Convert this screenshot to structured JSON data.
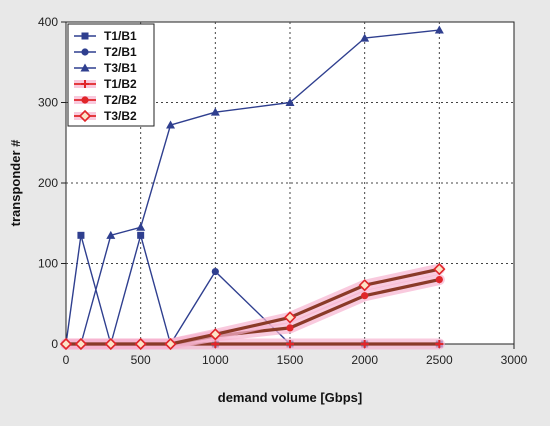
{
  "chart_data": {
    "type": "line",
    "title": "",
    "xlabel": "demand volume [Gbps]",
    "ylabel": "transponder #",
    "xlim": [
      0,
      3000
    ],
    "ylim": [
      0,
      400
    ],
    "xticks": [
      0,
      500,
      1000,
      1500,
      2000,
      2500,
      3000
    ],
    "yticks": [
      0,
      100,
      200,
      300,
      400
    ],
    "grid": true,
    "legend_position": "top-left",
    "series": [
      {
        "name": "T1/B1",
        "color": "#2f3f8f",
        "marker": "square",
        "glow": false,
        "x": [
          0,
          100,
          300,
          500,
          700,
          1000,
          1500,
          2000,
          2500
        ],
        "y": [
          0,
          135,
          0,
          135,
          0,
          0,
          0,
          0,
          0
        ]
      },
      {
        "name": "T2/B1",
        "color": "#2f3f8f",
        "marker": "circle",
        "glow": false,
        "x": [
          0,
          100,
          300,
          500,
          700,
          1000,
          1500,
          2000,
          2500
        ],
        "y": [
          0,
          0,
          0,
          0,
          0,
          90,
          0,
          0,
          0
        ]
      },
      {
        "name": "T3/B1",
        "color": "#2f3f8f",
        "marker": "triangle",
        "glow": false,
        "x": [
          0,
          100,
          300,
          500,
          700,
          1000,
          1500,
          2000,
          2500
        ],
        "y": [
          0,
          0,
          135,
          145,
          272,
          288,
          300,
          380,
          390
        ]
      },
      {
        "name": "T1/B2",
        "color": "#e0252a",
        "marker": "plus",
        "glow": true,
        "x": [
          0,
          100,
          300,
          500,
          700,
          1000,
          1500,
          2000,
          2500
        ],
        "y": [
          0,
          0,
          0,
          0,
          0,
          0,
          0,
          0,
          0
        ]
      },
      {
        "name": "T2/B2",
        "color": "#e0252a",
        "marker": "circle",
        "glow": true,
        "x": [
          0,
          100,
          300,
          500,
          700,
          1000,
          1500,
          2000,
          2500
        ],
        "y": [
          0,
          0,
          0,
          0,
          0,
          10,
          20,
          60,
          80
        ]
      },
      {
        "name": "T3/B2",
        "color": "#e0252a",
        "marker": "diamond",
        "glow": true,
        "x": [
          0,
          100,
          300,
          500,
          700,
          1000,
          1500,
          2000,
          2500
        ],
        "y": [
          0,
          0,
          0,
          0,
          0,
          12,
          33,
          73,
          93
        ]
      }
    ]
  }
}
